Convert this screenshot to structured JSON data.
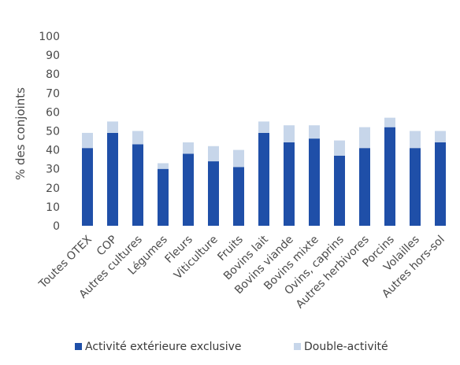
{
  "chart_data": {
    "type": "bar",
    "stacked": true,
    "title": "",
    "xlabel": "",
    "ylabel": "% des conjoints",
    "ylim": [
      0,
      100
    ],
    "yticks": [
      0,
      10,
      20,
      30,
      40,
      50,
      60,
      70,
      80,
      90,
      100
    ],
    "grid": false,
    "legend_position": "bottom",
    "categories": [
      "Toutes OTEX",
      "COP",
      "Autres cultures",
      "Légumes",
      "Fleurs",
      "Viticulture",
      "Fruits",
      "Bovins lait",
      "Bovins viande",
      "Bovins mixte",
      "Ovins, caprins",
      "Autres herbivores",
      "Porcins",
      "Volailles",
      "Autres hors-sol"
    ],
    "series": [
      {
        "name": "Activité extérieure exclusive",
        "color": "#1f4fa8",
        "values": [
          41,
          49,
          43,
          30,
          38,
          34,
          31,
          49,
          44,
          46,
          37,
          41,
          52,
          41,
          44
        ]
      },
      {
        "name": "Double-activité",
        "color": "#c7d6ea",
        "values": [
          8,
          6,
          7,
          3,
          6,
          8,
          9,
          6,
          9,
          7,
          8,
          11,
          5,
          9,
          6
        ]
      }
    ]
  }
}
